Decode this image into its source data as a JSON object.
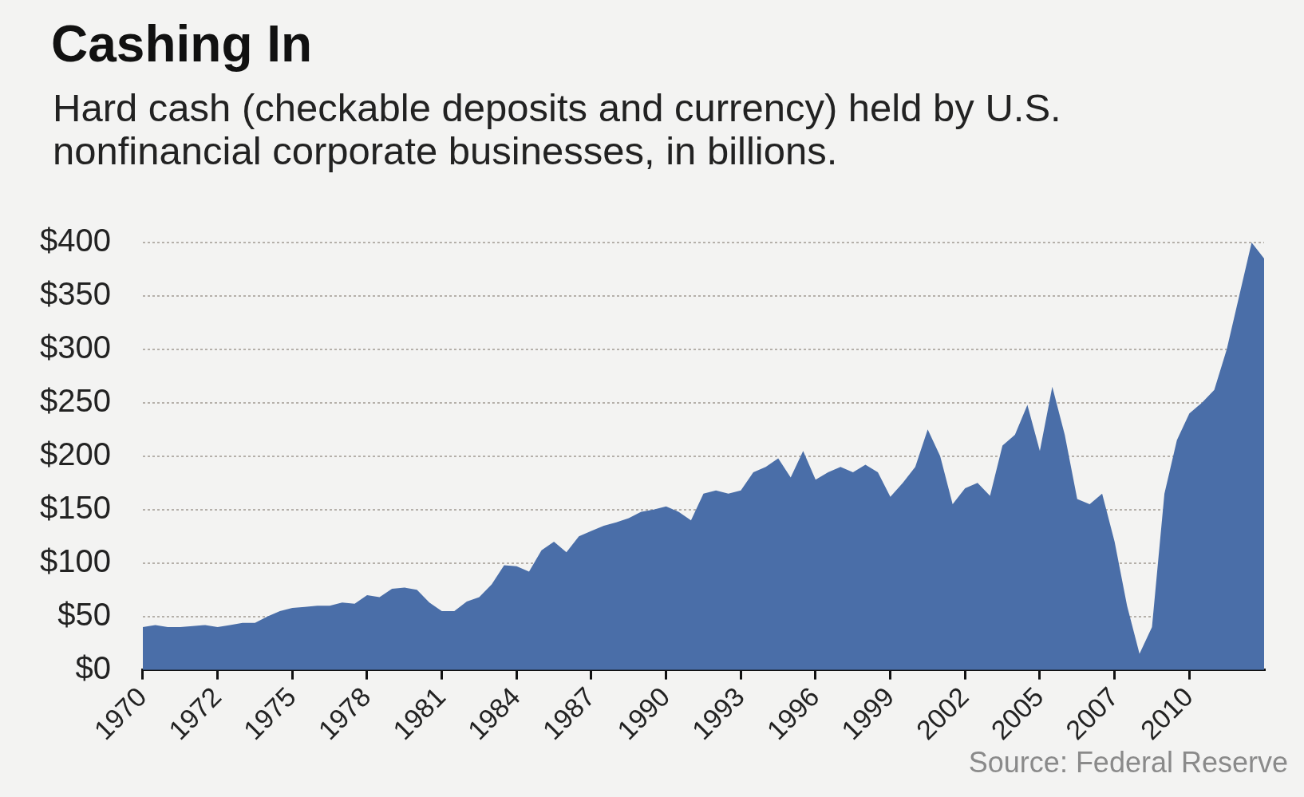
{
  "chart_data": {
    "type": "area",
    "title": "Cashing In",
    "subtitle": "Hard cash (checkable deposits and currency) held by U.S. nonfinancial corporate businesses, in billions.",
    "categories": [
      "1970",
      null,
      null,
      null,
      null,
      null,
      "1972",
      null,
      null,
      null,
      null,
      null,
      "1975",
      null,
      null,
      null,
      null,
      null,
      "1978",
      null,
      null,
      null,
      null,
      null,
      "1981",
      null,
      null,
      null,
      null,
      null,
      "1984",
      null,
      null,
      null,
      null,
      null,
      "1987",
      null,
      null,
      null,
      null,
      null,
      "1990",
      null,
      null,
      null,
      null,
      null,
      "1993",
      null,
      null,
      null,
      null,
      null,
      "1996",
      null,
      null,
      null,
      null,
      null,
      "1999",
      null,
      null,
      null,
      null,
      null,
      "2002",
      null,
      null,
      null,
      null,
      null,
      "2005",
      null,
      null,
      null,
      null,
      null,
      "2007",
      null,
      null,
      null,
      null,
      null,
      "2010",
      null,
      null,
      null,
      null,
      null,
      null
    ],
    "series": [
      {
        "color": "#4a6ea8",
        "values": [
          40,
          42,
          40,
          40,
          41,
          42,
          40,
          42,
          44,
          44,
          50,
          55,
          58,
          59,
          60,
          60,
          63,
          62,
          70,
          68,
          76,
          77,
          75,
          63,
          55,
          55,
          64,
          68,
          80,
          98,
          97,
          92,
          112,
          120,
          110,
          125,
          130,
          135,
          138,
          142,
          148,
          150,
          153,
          148,
          140,
          165,
          168,
          165,
          168,
          185,
          190,
          198,
          180,
          205,
          178,
          185,
          190,
          185,
          192,
          185,
          162,
          175,
          190,
          225,
          200,
          155,
          170,
          175,
          163,
          210,
          220,
          248,
          205,
          265,
          220,
          160,
          155,
          165,
          120,
          60,
          15,
          40,
          165,
          215,
          240,
          250,
          262,
          300,
          350,
          400,
          385
        ]
      }
    ],
    "ylim": [
      0,
      400
    ],
    "yticks": [
      {
        "value": 0,
        "label": "$0"
      },
      {
        "value": 50,
        "label": "$50"
      },
      {
        "value": 100,
        "label": "$100"
      },
      {
        "value": 150,
        "label": "$150"
      },
      {
        "value": 200,
        "label": "$200"
      },
      {
        "value": 250,
        "label": "$250"
      },
      {
        "value": 300,
        "label": "$300"
      },
      {
        "value": 350,
        "label": "$350"
      },
      {
        "value": 400,
        "label": "$400"
      }
    ],
    "grid": "y",
    "annotations": [
      "Source: Federal Reserve"
    ]
  }
}
